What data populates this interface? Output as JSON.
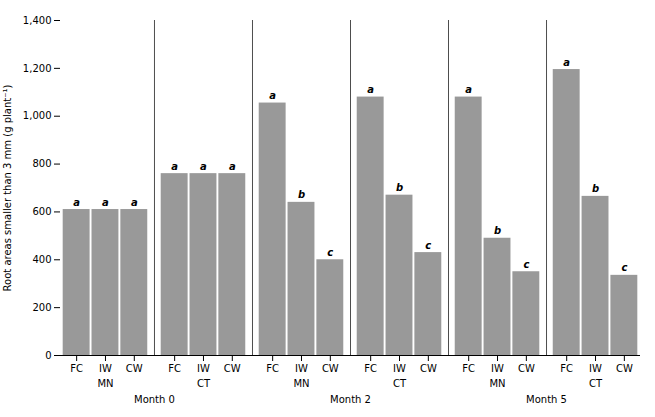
{
  "chart_data": {
    "type": "bar",
    "ylabel": "Root areas smaller than 3 mm (g plant⁻¹)",
    "categories": [
      "FC",
      "IW",
      "CW",
      "FC",
      "IW",
      "CW",
      "FC",
      "IW",
      "CW",
      "FC",
      "IW",
      "CW",
      "FC",
      "IW",
      "CW",
      "FC",
      "IW",
      "CW"
    ],
    "values": [
      610,
      610,
      610,
      760,
      760,
      760,
      1055,
      640,
      400,
      1080,
      670,
      430,
      1080,
      490,
      350,
      1195,
      665,
      335
    ],
    "annotations": [
      "a",
      "a",
      "a",
      "a",
      "a",
      "a",
      "a",
      "b",
      "c",
      "a",
      "b",
      "c",
      "a",
      "b",
      "c",
      "a",
      "b",
      "c"
    ],
    "group_labels": [
      "MN",
      "CT",
      "MN",
      "CT",
      "MN",
      "CT"
    ],
    "month_labels": [
      "Month 0",
      "Month 2",
      "Month 5"
    ],
    "color": "#999999",
    "ylim": [
      0,
      1400
    ],
    "yticks": [
      0,
      200,
      400,
      600,
      800,
      1000,
      1200,
      1400
    ]
  }
}
